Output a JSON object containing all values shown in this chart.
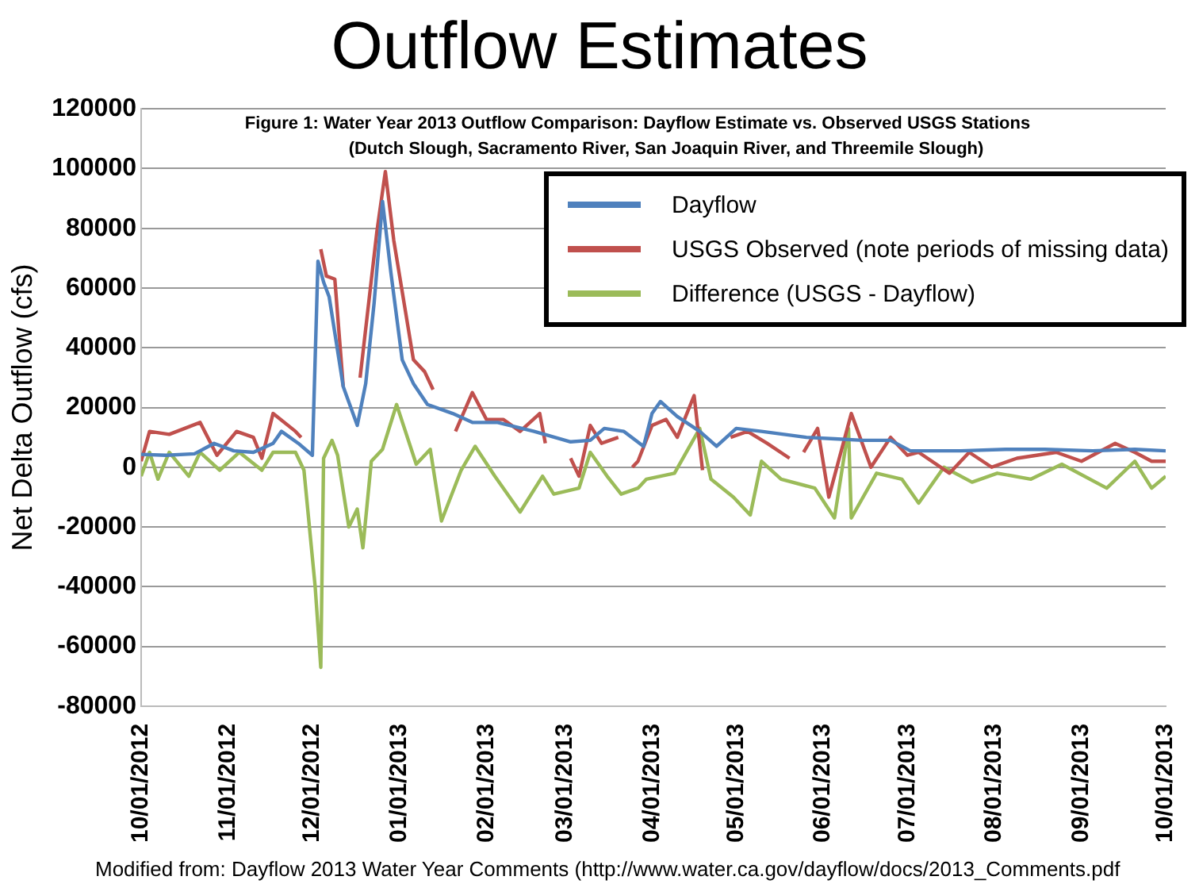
{
  "chart_data": {
    "type": "line",
    "title": "Outflow Estimates",
    "subtitle": "Figure 1: Water Year 2013 Outflow Comparison: Dayflow Estimate vs. Observed USGS Stations\n(Dutch Slough, Sacramento River, San Joaquin River, and Threemile Slough)",
    "ylabel": "Net Delta Outflow (cfs)",
    "annotations": [
      "Modified from: Dayflow 2013 Water Year Comments (http://www.water.ca.gov/dayflow/docs/2013_Comments.pdf"
    ],
    "xlim": [
      "2012-10-01",
      "2013-10-01"
    ],
    "xticks": [
      {
        "value": "2012-10-01",
        "label": "10/01/2012"
      },
      {
        "value": "2012-11-01",
        "label": "11/01/2012"
      },
      {
        "value": "2012-12-01",
        "label": "12/01/2012"
      },
      {
        "value": "2013-01-01",
        "label": "01/01/2013"
      },
      {
        "value": "2013-02-01",
        "label": "02/01/2013"
      },
      {
        "value": "2013-03-01",
        "label": "03/01/2013"
      },
      {
        "value": "2013-04-01",
        "label": "04/01/2013"
      },
      {
        "value": "2013-05-01",
        "label": "05/01/2013"
      },
      {
        "value": "2013-06-01",
        "label": "06/01/2013"
      },
      {
        "value": "2013-07-01",
        "label": "07/01/2013"
      },
      {
        "value": "2013-08-01",
        "label": "08/01/2013"
      },
      {
        "value": "2013-09-01",
        "label": "09/01/2013"
      },
      {
        "value": "2013-10-01",
        "label": "10/01/2013"
      }
    ],
    "ylim": [
      -80000,
      120000
    ],
    "yticks": [
      -80000,
      -60000,
      -40000,
      -20000,
      0,
      20000,
      40000,
      60000,
      80000,
      100000,
      120000
    ],
    "grid": "y",
    "legend": "top right",
    "marker": "none",
    "line_style": "solid",
    "series": [
      {
        "name": "Dayflow",
        "color": "#4f81bd",
        "x": [
          "2012-10-01",
          "2012-10-10",
          "2012-10-20",
          "2012-10-27",
          "2012-11-03",
          "2012-11-10",
          "2012-11-17",
          "2012-11-20",
          "2012-11-26",
          "2012-12-01",
          "2012-12-03",
          "2012-12-05",
          "2012-12-07",
          "2012-12-12",
          "2012-12-17",
          "2012-12-20",
          "2012-12-23",
          "2012-12-26",
          "2012-12-29",
          "2013-01-02",
          "2013-01-06",
          "2013-01-11",
          "2013-01-20",
          "2013-01-27",
          "2013-02-05",
          "2013-02-18",
          "2013-03-03",
          "2013-03-10",
          "2013-03-15",
          "2013-03-22",
          "2013-03-29",
          "2013-04-01",
          "2013-04-04",
          "2013-04-10",
          "2013-04-18",
          "2013-04-24",
          "2013-05-01",
          "2013-05-10",
          "2013-05-18",
          "2013-05-26",
          "2013-06-05",
          "2013-06-15",
          "2013-06-25",
          "2013-07-02",
          "2013-07-20",
          "2013-08-05",
          "2013-08-19",
          "2013-09-05",
          "2013-09-20",
          "2013-10-01"
        ],
        "values": [
          4300,
          4000,
          4500,
          8000,
          5500,
          5000,
          8000,
          12000,
          8000,
          4000,
          69000,
          62000,
          57000,
          27000,
          14000,
          28000,
          55000,
          89000,
          65000,
          36000,
          28000,
          21000,
          18000,
          15000,
          15000,
          12000,
          8500,
          9000,
          13000,
          12000,
          7000,
          18000,
          22000,
          17000,
          12000,
          7000,
          13000,
          12000,
          11000,
          10000,
          9500,
          9000,
          9000,
          5500,
          5500,
          6000,
          6000,
          5500,
          6000,
          5500
        ]
      },
      {
        "name": "USGS Observed (note periods of missing data)",
        "color": "#c0504d",
        "x": [
          "2012-10-01",
          "2012-10-04",
          "2012-10-11",
          "2012-10-22",
          "2012-10-28",
          "2012-11-04",
          "2012-11-10",
          "2012-11-13",
          "2012-11-17",
          "2012-11-25",
          "2012-11-27",
          "2012-12-01",
          "2012-12-04",
          "2012-12-06",
          "2012-12-09",
          "2012-12-12",
          "2012-12-15",
          "2012-12-18",
          "2012-12-24",
          "2012-12-27",
          "2012-12-30",
          "2013-01-06",
          "2013-01-10",
          "2013-01-13",
          "2013-01-17",
          "2013-01-21",
          "2013-01-27",
          "2013-02-01",
          "2013-02-07",
          "2013-02-13",
          "2013-02-20",
          "2013-02-22",
          "2013-02-27",
          "2013-03-03",
          "2013-03-06",
          "2013-03-10",
          "2013-03-14",
          "2013-03-20",
          "2013-03-23",
          "2013-03-25",
          "2013-03-27",
          "2013-04-01",
          "2013-04-06",
          "2013-04-10",
          "2013-04-16",
          "2013-04-19",
          "2013-04-24",
          "2013-04-29",
          "2013-05-05",
          "2013-05-12",
          "2013-05-20",
          "2013-05-22",
          "2013-05-25",
          "2013-05-30",
          "2013-06-03",
          "2013-06-11",
          "2013-06-18",
          "2013-06-25",
          "2013-07-01",
          "2013-07-05",
          "2013-07-16",
          "2013-07-23",
          "2013-07-31",
          "2013-08-09",
          "2013-08-23",
          "2013-09-01",
          "2013-09-13",
          "2013-09-20",
          "2013-09-26",
          "2013-10-01"
        ],
        "values": [
          2000,
          12000,
          11000,
          15000,
          4000,
          12000,
          10000,
          3000,
          18000,
          12000,
          10000,
          null,
          73000,
          64000,
          63000,
          27000,
          null,
          30000,
          79000,
          99000,
          76000,
          36000,
          32000,
          26000,
          null,
          12000,
          25000,
          16000,
          16000,
          12000,
          18000,
          8000,
          null,
          3000,
          -3000,
          14000,
          8000,
          10000,
          null,
          0,
          2000,
          14000,
          16000,
          10000,
          24000,
          -1000,
          null,
          10000,
          12000,
          8000,
          3000,
          null,
          5000,
          13000,
          -10000,
          18000,
          0,
          10000,
          4000,
          5000,
          -2000,
          5000,
          0,
          3000,
          5000,
          2000,
          8000,
          5000,
          2000,
          2000
        ]
      },
      {
        "name": "Difference (USGS - Dayflow)",
        "color": "#9bbb59",
        "x": [
          "2012-10-01",
          "2012-10-04",
          "2012-10-07",
          "2012-10-11",
          "2012-10-18",
          "2012-10-22",
          "2012-10-29",
          "2012-11-05",
          "2012-11-13",
          "2012-11-17",
          "2012-11-25",
          "2012-11-28",
          "2012-12-02",
          "2012-12-04",
          "2012-12-05",
          "2012-12-08",
          "2012-12-10",
          "2012-12-14",
          "2012-12-17",
          "2012-12-19",
          "2012-12-22",
          "2012-12-26",
          "2012-12-31",
          "2013-01-07",
          "2013-01-12",
          "2013-01-16",
          "2013-01-23",
          "2013-01-28",
          "2013-02-04",
          "2013-02-13",
          "2013-02-21",
          "2013-02-25",
          "2013-03-06",
          "2013-03-10",
          "2013-03-16",
          "2013-03-21",
          "2013-03-27",
          "2013-03-30",
          "2013-04-09",
          "2013-04-18",
          "2013-04-22",
          "2013-04-30",
          "2013-05-06",
          "2013-05-10",
          "2013-05-17",
          "2013-05-29",
          "2013-06-05",
          "2013-06-10",
          "2013-06-11",
          "2013-06-20",
          "2013-06-29",
          "2013-07-05",
          "2013-07-14",
          "2013-07-24",
          "2013-08-02",
          "2013-08-14",
          "2013-08-25",
          "2013-09-10",
          "2013-09-20",
          "2013-09-26",
          "2013-10-01"
        ],
        "values": [
          -3000,
          5000,
          -4000,
          5000,
          -3000,
          5000,
          -1000,
          5000,
          -1000,
          5000,
          5000,
          -1000,
          -40000,
          -67000,
          3000,
          9000,
          4000,
          -20000,
          -14000,
          -27000,
          2000,
          6000,
          21000,
          1000,
          6000,
          -18000,
          -1000,
          7000,
          -3000,
          -15000,
          -3000,
          -9000,
          -7000,
          5000,
          -3000,
          -9000,
          -7000,
          -4000,
          -2000,
          13000,
          -4000,
          -10000,
          -16000,
          2000,
          -4000,
          -7000,
          -17000,
          13000,
          -17000,
          -2000,
          -4000,
          -12000,
          0,
          -5000,
          -2000,
          -4000,
          1000,
          -7000,
          2000,
          -7000,
          -3000
        ]
      }
    ]
  }
}
